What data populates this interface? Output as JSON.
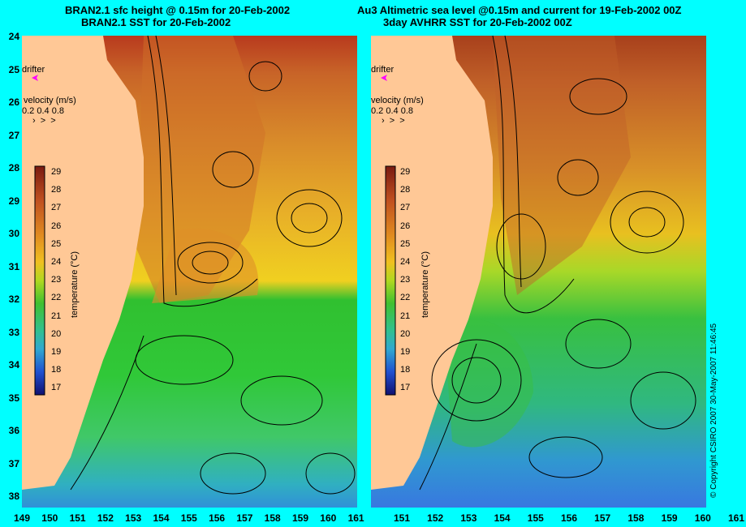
{
  "left_panel": {
    "title_line1": "BRAN2.1 sfc height @ 0.15m for 20-Feb-2002",
    "title_line2": "BRAN2.1 SST for 20-Feb-2002",
    "drifter_label": "drifter",
    "velocity_label": "velocity (m/s)",
    "velocity_scale": "0.2 0.4 0.8",
    "colorbar_label": "temperature (°C)",
    "colorbar_ticks": [
      "29",
      "28",
      "27",
      "26",
      "25",
      "24",
      "23",
      "22",
      "21",
      "20",
      "19",
      "18",
      "17"
    ]
  },
  "right_panel": {
    "title_line1": "Au3 Altimetric sea level  @0.15m and current for 19-Feb-2002 00Z",
    "title_line2": "3day AVHRR SST for 20-Feb-2002 00Z",
    "drifter_label": "drifter",
    "velocity_label": "velocity (m/s)",
    "velocity_scale": "0.2 0.4 0.8",
    "colorbar_label": "temperature (°C)",
    "colorbar_ticks": [
      "29",
      "28",
      "27",
      "26",
      "25",
      "24",
      "23",
      "22",
      "21",
      "20",
      "19",
      "18",
      "17"
    ]
  },
  "y_axis": [
    "24",
    "25",
    "26",
    "27",
    "28",
    "29",
    "30",
    "31",
    "32",
    "33",
    "34",
    "35",
    "36",
    "37",
    "38"
  ],
  "x_axis_left": [
    "149",
    "150",
    "151",
    "152",
    "153",
    "154",
    "155",
    "156",
    "157",
    "158",
    "159",
    "160",
    "161"
  ],
  "x_axis_right": [
    "151",
    "152",
    "153",
    "154",
    "155",
    "156",
    "157",
    "158",
    "159",
    "160",
    "161"
  ],
  "copyright": "© Copyright CSIRO 2007   30-May-2007 11:46:45",
  "colors": {
    "background": "#00ffff",
    "land": "#ffc896",
    "drifter": "#ff00ff"
  }
}
